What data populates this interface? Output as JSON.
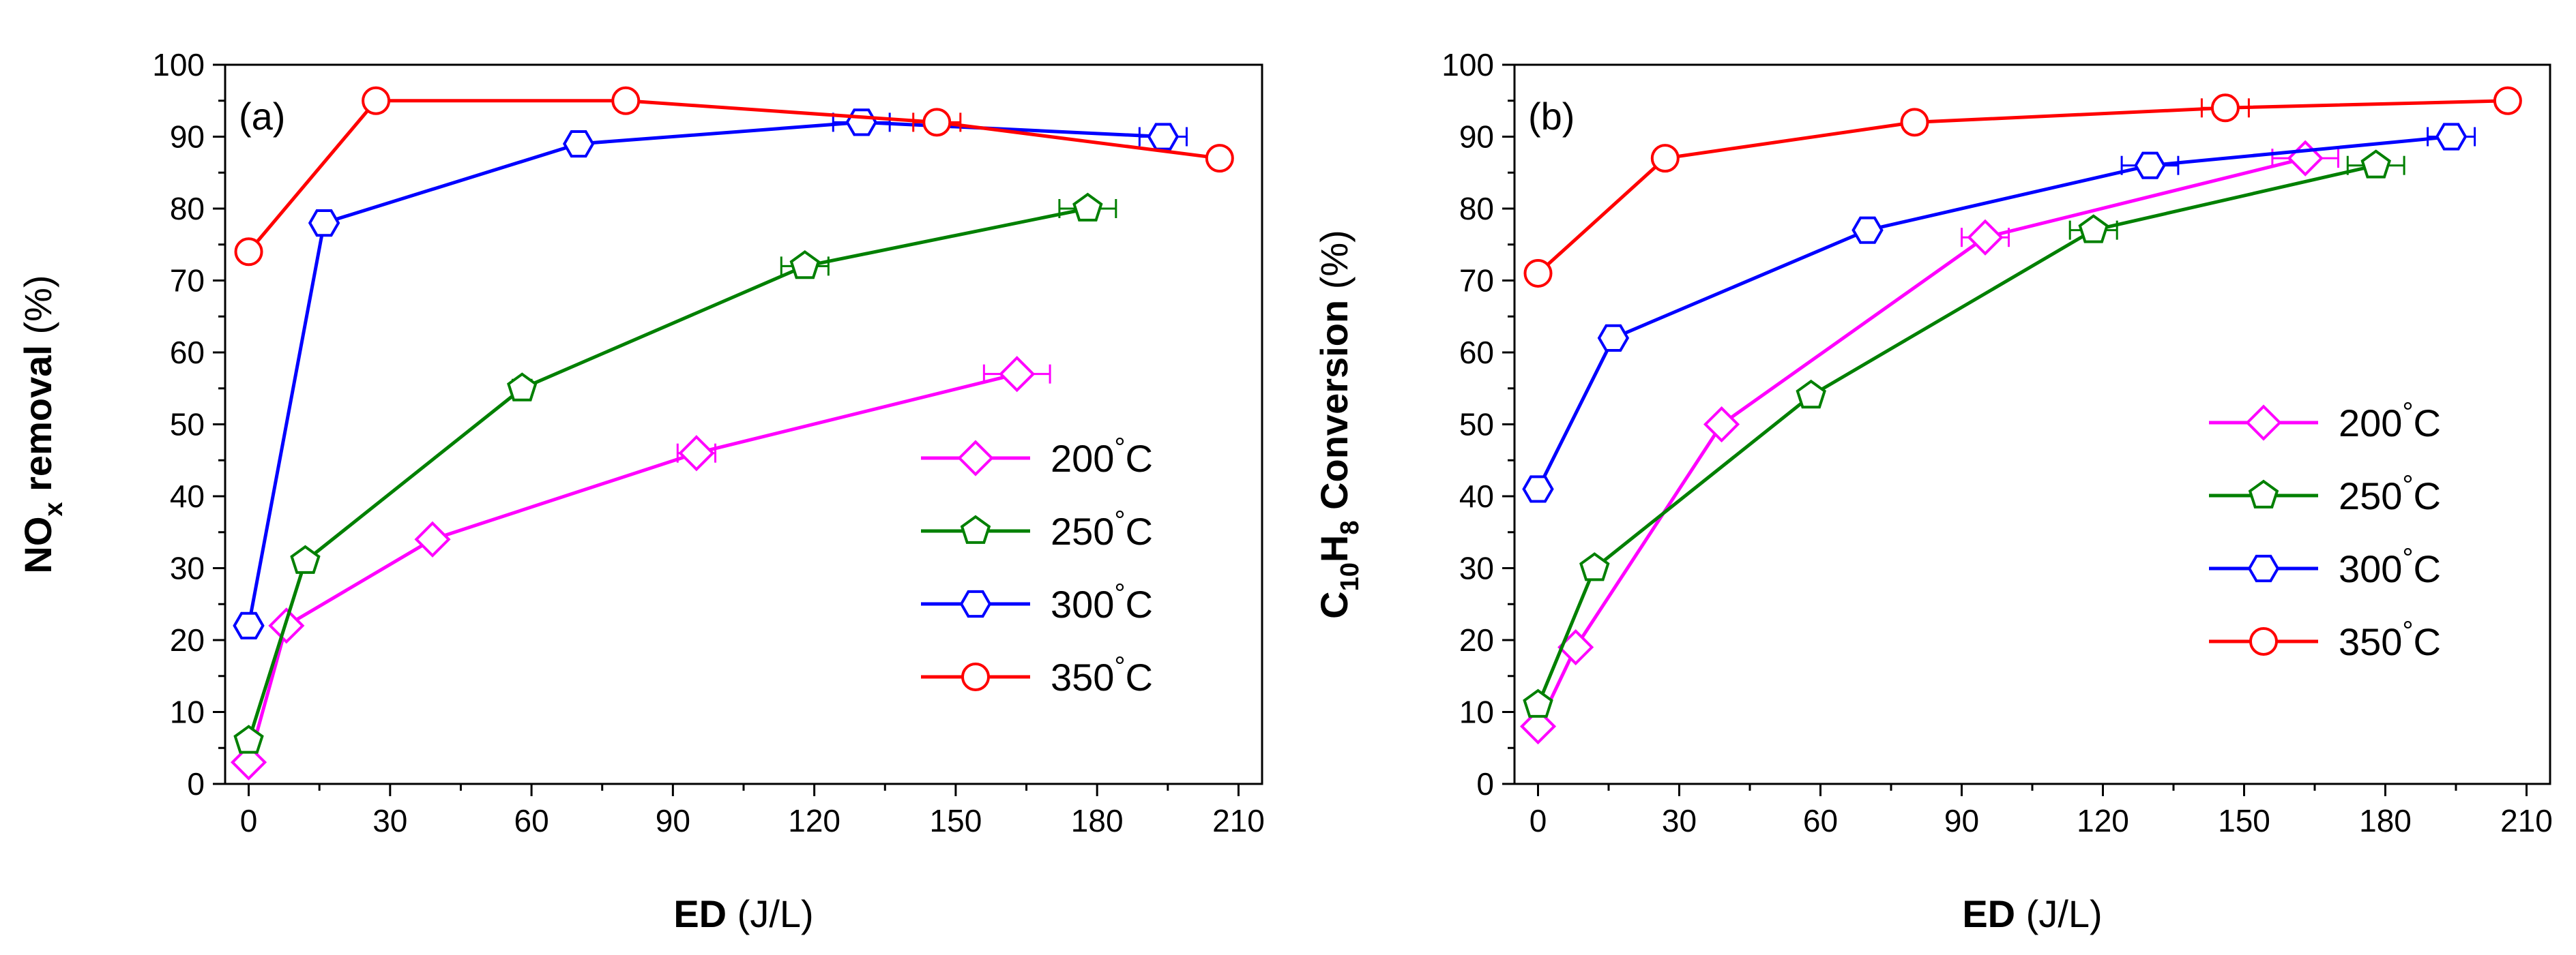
{
  "chart_data": [
    {
      "type": "line",
      "panel_label": "(a)",
      "ylabel": {
        "main": "NO",
        "sub": "x",
        "rest": " removal",
        "unit": " (%)"
      },
      "xlabel": {
        "bold": "ED",
        "normal": " (J/L)"
      },
      "xlim": [
        -5,
        215
      ],
      "ylim": [
        0,
        100
      ],
      "xticks": [
        0,
        30,
        60,
        90,
        120,
        150,
        180,
        210
      ],
      "yticks": [
        0,
        10,
        20,
        30,
        40,
        50,
        60,
        70,
        80,
        90,
        100
      ],
      "legend_position": "bottom-right",
      "series": [
        {
          "name": "200°C",
          "temp": "200",
          "unit": "C",
          "marker": "diamond",
          "color": "#ff00ff",
          "x": [
            0,
            8,
            39,
            95,
            163
          ],
          "y": [
            3,
            22,
            34,
            46,
            57
          ],
          "xerr": [
            0,
            0,
            1,
            4,
            7
          ]
        },
        {
          "name": "250°C",
          "temp": "250",
          "unit": "C",
          "marker": "pentagon",
          "color": "#008000",
          "x": [
            0,
            12,
            58,
            118,
            178
          ],
          "y": [
            6,
            31,
            55,
            72,
            80
          ],
          "xerr": [
            0,
            1,
            2,
            5,
            6
          ]
        },
        {
          "name": "300°C",
          "temp": "300",
          "unit": "C",
          "marker": "hexagon",
          "color": "#0000ff",
          "x": [
            0,
            16,
            70,
            130,
            194
          ],
          "y": [
            22,
            78,
            89,
            92,
            90
          ],
          "xerr": [
            0,
            0,
            1,
            6,
            5
          ]
        },
        {
          "name": "350°C",
          "temp": "350",
          "unit": "C",
          "marker": "circle",
          "color": "#ff0000",
          "x": [
            0,
            27,
            80,
            146,
            206
          ],
          "y": [
            74,
            95,
            95,
            92,
            87
          ],
          "xerr": [
            0,
            0,
            1,
            5,
            0
          ]
        }
      ]
    },
    {
      "type": "line",
      "panel_label": "(b)",
      "ylabel": {
        "main": "C",
        "sub": "10",
        "main2": "H",
        "sub2": "8",
        "rest": " Conversion",
        "unit": " (%)"
      },
      "xlabel": {
        "bold": "ED",
        "normal": " (J/L)"
      },
      "xlim": [
        -5,
        215
      ],
      "ylim": [
        0,
        100
      ],
      "xticks": [
        0,
        30,
        60,
        90,
        120,
        150,
        180,
        210
      ],
      "yticks": [
        0,
        10,
        20,
        30,
        40,
        50,
        60,
        70,
        80,
        90,
        100
      ],
      "legend_position": "bottom-right",
      "series": [
        {
          "name": "200°C",
          "temp": "200",
          "unit": "C",
          "marker": "diamond",
          "color": "#ff00ff",
          "x": [
            0,
            8,
            39,
            95,
            163
          ],
          "y": [
            8,
            19,
            50,
            76,
            87
          ],
          "xerr": [
            0,
            1,
            1,
            5,
            7
          ]
        },
        {
          "name": "250°C",
          "temp": "250",
          "unit": "C",
          "marker": "pentagon",
          "color": "#008000",
          "x": [
            0,
            12,
            58,
            118,
            178
          ],
          "y": [
            11,
            30,
            54,
            77,
            86
          ],
          "xerr": [
            0,
            1,
            1,
            5,
            6
          ]
        },
        {
          "name": "300°C",
          "temp": "300",
          "unit": "C",
          "marker": "hexagon",
          "color": "#0000ff",
          "x": [
            0,
            16,
            70,
            130,
            194
          ],
          "y": [
            41,
            62,
            77,
            86,
            90
          ],
          "xerr": [
            0,
            0,
            1,
            6,
            5
          ]
        },
        {
          "name": "350°C",
          "temp": "350",
          "unit": "C",
          "marker": "circle",
          "color": "#ff0000",
          "x": [
            0,
            27,
            80,
            146,
            206
          ],
          "y": [
            71,
            87,
            92,
            94,
            95
          ],
          "xerr": [
            0,
            0,
            1,
            5,
            0
          ]
        }
      ]
    }
  ]
}
